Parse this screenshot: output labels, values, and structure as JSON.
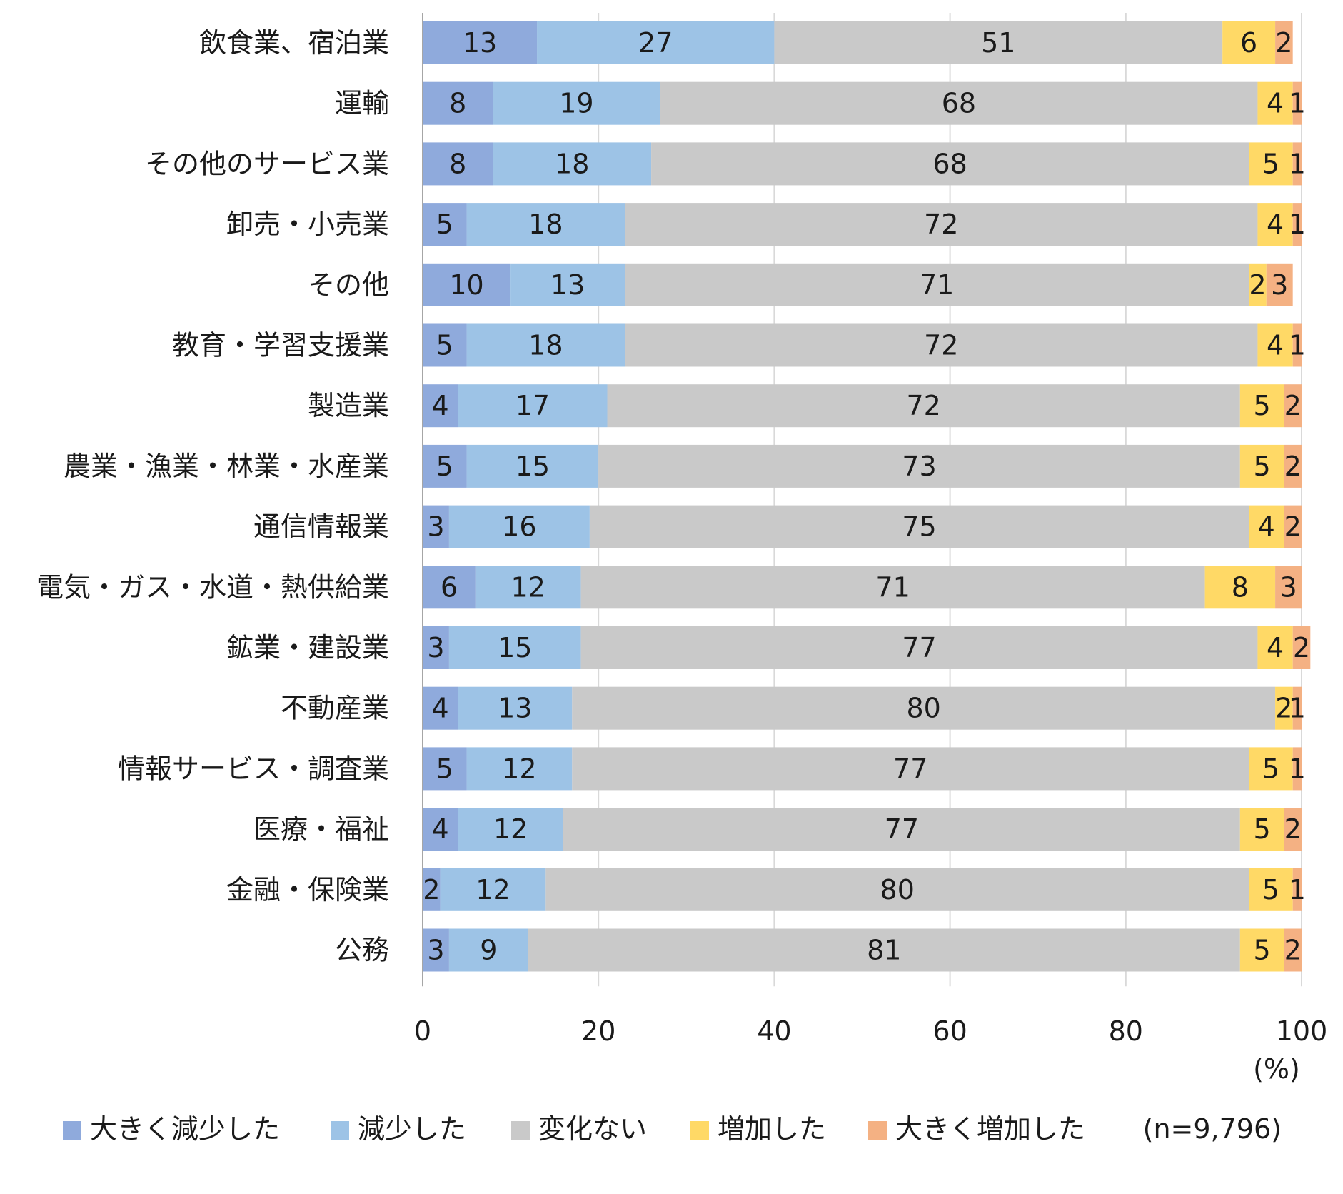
{
  "chart_data": {
    "type": "bar",
    "orientation": "horizontal-stacked-100",
    "title": "",
    "xlabel": "",
    "ylabel": "",
    "x_unit": "(%)",
    "xlim": [
      0,
      100
    ],
    "x_ticks": [
      0,
      20,
      40,
      60,
      80,
      100
    ],
    "grid": true,
    "legend_position": "bottom",
    "note": "(n=9,796)",
    "categories": [
      "飲食業、宿泊業",
      "運輸",
      "その他のサービス業",
      "卸売・小売業",
      "その他",
      "教育・学習支援業",
      "製造業",
      "農業・漁業・林業・水産業",
      "通信情報業",
      "電気・ガス・水道・熱供給業",
      "鉱業・建設業",
      "不動産業",
      "情報サービス・調査業",
      "医療・福祉",
      "金融・保険業",
      "公務"
    ],
    "series": [
      {
        "name": "大きく減少した",
        "color": "#8faadc",
        "values": [
          13,
          8,
          8,
          5,
          10,
          5,
          4,
          5,
          3,
          6,
          3,
          4,
          5,
          4,
          2,
          3
        ]
      },
      {
        "name": "減少した",
        "color": "#9dc3e6",
        "values": [
          27,
          19,
          18,
          18,
          13,
          18,
          17,
          15,
          16,
          12,
          15,
          13,
          12,
          12,
          12,
          9
        ]
      },
      {
        "name": "変化ない",
        "color": "#c9c9c9",
        "values": [
          51,
          68,
          68,
          72,
          71,
          72,
          72,
          73,
          75,
          71,
          77,
          80,
          77,
          77,
          80,
          81
        ]
      },
      {
        "name": "増加した",
        "color": "#ffd966",
        "values": [
          6,
          4,
          5,
          4,
          2,
          4,
          5,
          5,
          4,
          8,
          4,
          2,
          5,
          5,
          5,
          5
        ]
      },
      {
        "name": "大きく増加した",
        "color": "#f4b183",
        "values": [
          2,
          1,
          1,
          1,
          3,
          1,
          2,
          2,
          2,
          3,
          2,
          1,
          1,
          2,
          1,
          2
        ]
      }
    ]
  }
}
